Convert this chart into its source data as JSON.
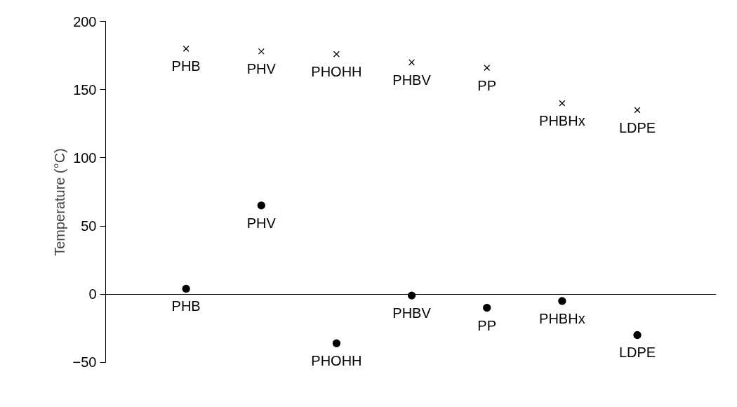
{
  "chart_data": {
    "type": "scatter",
    "ylabel": "Temperature (°C)",
    "categories": [
      null,
      null,
      null,
      null,
      null,
      null,
      null
    ],
    "ylim": [
      -50,
      200
    ],
    "yticks": [
      -50,
      0,
      50,
      100,
      150,
      200
    ],
    "tick_labels": "y",
    "series": [
      {
        "color": "#000000",
        "marker": "cross",
        "values": [
          180,
          178,
          176,
          170,
          166,
          140,
          135
        ],
        "value_labels": [
          "PHB",
          "PHV",
          "PHOHH",
          "PHBV",
          "PP",
          "PHBHx",
          "LDPE"
        ]
      },
      {
        "color": "#000000",
        "marker": "circle",
        "values": [
          4,
          65,
          -36,
          -1,
          -10,
          -5,
          -30
        ],
        "value_labels": [
          "PHB",
          "PHV",
          "PHOHH",
          "PHBV",
          "PP",
          "PHBHx",
          "LDPE"
        ]
      }
    ]
  }
}
